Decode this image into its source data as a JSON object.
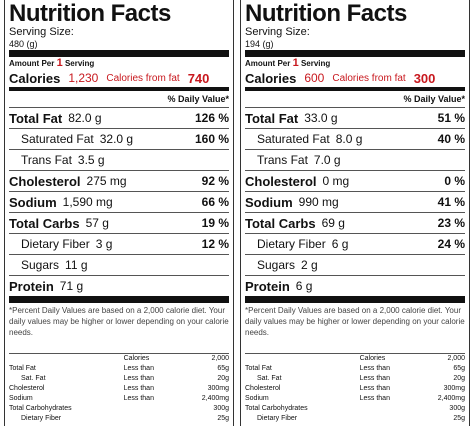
{
  "labels": [
    {
      "title": "Nutrition Facts",
      "serving_size_label": "Serving Size:",
      "serving_size": "480 (g)",
      "amount_per": "Amount Per",
      "amount_count": "1",
      "amount_unit": "Serving",
      "calories_label": "Calories",
      "calories": "1,230",
      "calories_fat_label": "Calories from fat",
      "calories_fat": "740",
      "dv_header": "% Daily Value*",
      "rows": [
        {
          "name": "Total Fat",
          "amount": "82.0 g",
          "dv": "126 %",
          "sub": [
            {
              "name": "Saturated Fat",
              "amount": "32.0 g",
              "dv": "160 %"
            },
            {
              "name": "Trans Fat",
              "amount": "3.5 g"
            }
          ]
        },
        {
          "name": "Cholesterol",
          "amount": "275 mg",
          "dv": "92 %"
        },
        {
          "name": "Sodium",
          "amount": "1,590 mg",
          "dv": "66 %"
        },
        {
          "name": "Total Carbs",
          "amount": "57 g",
          "dv": "19 %",
          "sub": [
            {
              "name": "Dietary Fiber",
              "amount": "3 g",
              "dv": "12 %"
            },
            {
              "name": "Sugars",
              "amount": "11 g"
            }
          ]
        },
        {
          "name": "Protein",
          "amount": "71 g"
        }
      ],
      "footnote": "*Percent Daily Values are based on a 2,000 calorie diet. Your daily values may be higher or lower depending on your calorie needs.",
      "table": {
        "header": [
          "Calories",
          "2,000"
        ],
        "rows": [
          {
            "name": "Total Fat",
            "limit": "Less than",
            "value": "65g"
          },
          {
            "name": "Sat. Fat",
            "limit": "Less than",
            "value": "20g"
          },
          {
            "name": "Cholesterol",
            "limit": "Less than",
            "value": "300mg"
          },
          {
            "name": "Sodium",
            "limit": "Less than",
            "value": "2,400mg"
          },
          {
            "name": "Total Carbohydrates",
            "value": "300g"
          },
          {
            "name": "Dietary Fiber",
            "value": "25g"
          }
        ]
      }
    },
    {
      "title": "Nutrition Facts",
      "serving_size_label": "Serving Size:",
      "serving_size": "194 (g)",
      "amount_per": "Amount Per",
      "amount_count": "1",
      "amount_unit": "Serving",
      "calories_label": "Calories",
      "calories": "600",
      "calories_fat_label": "Calories from fat",
      "calories_fat": "300",
      "dv_header": "% Daily Value*",
      "rows": [
        {
          "name": "Total Fat",
          "amount": "33.0 g",
          "dv": "51 %",
          "sub": [
            {
              "name": "Saturated Fat",
              "amount": "8.0 g",
              "dv": "40 %"
            },
            {
              "name": "Trans Fat",
              "amount": "7.0 g"
            }
          ]
        },
        {
          "name": "Cholesterol",
          "amount": "0 mg",
          "dv": "0 %"
        },
        {
          "name": "Sodium",
          "amount": "990 mg",
          "dv": "41 %"
        },
        {
          "name": "Total Carbs",
          "amount": "69 g",
          "dv": "23 %",
          "sub": [
            {
              "name": "Dietary Fiber",
              "amount": "6 g",
              "dv": "24 %"
            },
            {
              "name": "Sugars",
              "amount": "2 g"
            }
          ]
        },
        {
          "name": "Protein",
          "amount": "6 g"
        }
      ],
      "footnote": "*Percent Daily Values are based on a 2,000 calorie diet. Your daily values may be higher or lower depending on your calorie needs.",
      "table": {
        "header": [
          "Calories",
          "2,000"
        ],
        "rows": [
          {
            "name": "Total Fat",
            "limit": "Less than",
            "value": "65g"
          },
          {
            "name": "Sat. Fat",
            "limit": "Less than",
            "value": "20g"
          },
          {
            "name": "Cholesterol",
            "limit": "Less than",
            "value": "300mg"
          },
          {
            "name": "Sodium",
            "limit": "Less than",
            "value": "2,400mg"
          },
          {
            "name": "Total Carbohydrates",
            "value": "300g"
          },
          {
            "name": "Dietary Fiber",
            "value": "25g"
          }
        ]
      }
    }
  ]
}
